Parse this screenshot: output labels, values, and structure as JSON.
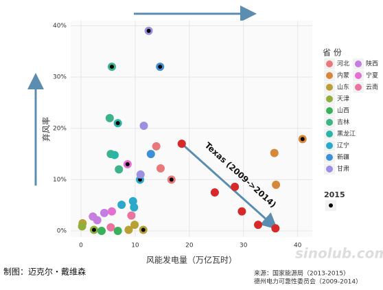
{
  "chart_data": {
    "type": "scatter",
    "x_label": "风能发电量（万亿瓦时）",
    "y_label": "弃风率",
    "xlim": [
      -1.9,
      42.7
    ],
    "ylim": [
      -1.2,
      41
    ],
    "xticks": [
      0,
      10,
      20,
      30,
      40
    ],
    "yticks": [
      {
        "value": 0,
        "label": "0%"
      },
      {
        "value": 10,
        "label": "10%"
      },
      {
        "value": 20,
        "label": "20%"
      },
      {
        "value": 30,
        "label": "30%"
      },
      {
        "value": 40,
        "label": "40%"
      }
    ],
    "grid": true,
    "legend_title": "省 份",
    "highlight_legend": "2015",
    "highlight_color": "#000000",
    "series": [
      {
        "name": "河北",
        "color": "#e8797b",
        "x": [
          13.9,
          14.7,
          16.7
        ],
        "y": [
          16.5,
          12.2,
          10
        ],
        "is_2015": [
          false,
          false,
          true
        ]
      },
      {
        "name": "内蒙",
        "color": "#d4883a",
        "x": [
          35.7,
          36,
          40.9
        ],
        "y": [
          15.2,
          9,
          17.9
        ],
        "is_2015": [
          false,
          false,
          true
        ]
      },
      {
        "name": "山东",
        "color": "#b8a035",
        "x": [
          0.3,
          9.9,
          8.8,
          11.5
        ],
        "y": [
          1.5,
          1.2,
          0.2,
          0.2
        ],
        "is_2015": [
          false,
          false,
          false,
          true
        ]
      },
      {
        "name": "天津",
        "color": "#8fae3c",
        "x": [
          0.2,
          2.4
        ],
        "y": [
          0.9,
          0.2
        ],
        "is_2015": [
          false,
          true
        ]
      },
      {
        "name": "山西",
        "color": "#39b05a",
        "x": [
          3.8,
          6.8
        ],
        "y": [
          0,
          0
        ],
        "is_2015": [
          false,
          false
        ]
      },
      {
        "name": "吉林",
        "color": "#3db38a",
        "x": [
          5.3,
          5.5,
          7.0,
          5.7
        ],
        "y": [
          22,
          15,
          12,
          32
        ],
        "is_2015": [
          false,
          false,
          false,
          true
        ]
      },
      {
        "name": "黑龙江",
        "color": "#2bb5a6",
        "x": [
          6.2,
          6.8
        ],
        "y": [
          14.8,
          21
        ],
        "is_2015": [
          false,
          true
        ]
      },
      {
        "name": "辽宁",
        "color": "#2aa9ca",
        "x": [
          7.5,
          9.6,
          9.8,
          10.9
        ],
        "y": [
          5.1,
          5.8,
          4.6,
          10
        ],
        "is_2015": [
          false,
          false,
          false,
          true
        ]
      },
      {
        "name": "新疆",
        "color": "#3e8fd6",
        "x": [
          12.9,
          14.6
        ],
        "y": [
          15,
          32
        ],
        "is_2015": [
          false,
          true
        ]
      },
      {
        "name": "甘肃",
        "color": "#9c90e2",
        "x": [
          11.6,
          11,
          12.5
        ],
        "y": [
          20.5,
          11,
          39
        ],
        "is_2015": [
          false,
          false,
          true
        ]
      },
      {
        "name": "陕西",
        "color": "#c57de2",
        "x": [
          2.2,
          3.0,
          4.3
        ],
        "y": [
          2.8,
          2.1,
          3.5
        ],
        "is_2015": [
          false,
          false,
          false
        ]
      },
      {
        "name": "宁夏",
        "color": "#e36fd3",
        "x": [
          5.7,
          8.6
        ],
        "y": [
          3.8,
          13
        ],
        "is_2015": [
          false,
          true
        ]
      },
      {
        "name": "云南",
        "color": "#e9749f",
        "x": [
          5.5,
          9.3
        ],
        "y": [
          0.7,
          3
        ],
        "is_2015": [
          false,
          false
        ]
      }
    ],
    "annotation": {
      "text": "Texas (2009->2014)",
      "color": "#d7282a",
      "x": [
        18.6,
        24.7,
        28.4,
        29.7,
        32.7,
        35.9
      ],
      "y": [
        17,
        7.5,
        8.6,
        3.8,
        1.2,
        0.5
      ]
    },
    "credit": "制图：迈克尔・戴维森",
    "source": [
      "来源：国家能源局（2013-2015）",
      "德州电力可靠性委员会（2009-2014）"
    ],
    "watermark": "sinolub.com"
  }
}
